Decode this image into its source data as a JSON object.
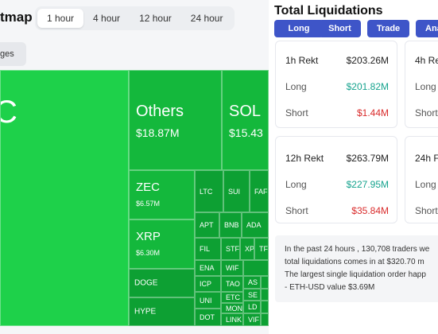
{
  "header": {
    "title": "tmap",
    "time_tabs": [
      "1 hour",
      "4 hour",
      "12 hour",
      "24 hour"
    ],
    "active_tab": "1 hour",
    "ranges_chip": "ges"
  },
  "heatmap": {
    "btc_partial_label": "C",
    "tiles": [
      {
        "name": "Others",
        "value": "$18.87M"
      },
      {
        "name": "SOL",
        "value": "$15.43"
      },
      {
        "name": "ZEC",
        "value": "$6.57M"
      },
      {
        "name": "XRP",
        "value": "$6.30M"
      },
      {
        "name": "DOGE"
      },
      {
        "name": "HYPE"
      },
      {
        "name": "LTC"
      },
      {
        "name": "SUI"
      },
      {
        "name": "FAF"
      },
      {
        "name": "APT"
      },
      {
        "name": "BNB"
      },
      {
        "name": "ADA"
      },
      {
        "name": "FIL"
      },
      {
        "name": "STF"
      },
      {
        "name": "XP"
      },
      {
        "name": "TF"
      },
      {
        "name": "ENA"
      },
      {
        "name": "WIF"
      },
      {
        "name": "ICP"
      },
      {
        "name": "TAO"
      },
      {
        "name": "AS"
      },
      {
        "name": "UNI"
      },
      {
        "name": "ETC"
      },
      {
        "name": "SE"
      },
      {
        "name": "MON"
      },
      {
        "name": "LD"
      },
      {
        "name": "DOT"
      },
      {
        "name": "LINK"
      },
      {
        "name": "VIF"
      }
    ],
    "colors": {
      "main": "#1ed14a",
      "mid": "#14b83c",
      "dark": "#0da033"
    }
  },
  "panel": {
    "title": "Total Liquidations",
    "buttons": [
      "Long",
      "Short",
      "Trade",
      "Ana"
    ],
    "cards": [
      {
        "head_label": "1h Rekt",
        "total": "$203.26M",
        "long_label": "Long",
        "long": "$201.82M",
        "short_label": "Short",
        "short": "$1.44M"
      },
      {
        "head_label": "4h Re",
        "long_label": "Long",
        "short_label": "Short"
      },
      {
        "head_label": "12h Rekt",
        "total": "$263.79M",
        "long_label": "Long",
        "long": "$227.95M",
        "short_label": "Short",
        "short": "$35.84M"
      },
      {
        "head_label": "24h F",
        "long_label": "Long",
        "short_label": "Short"
      }
    ],
    "summary_lines": [
      "In the past 24 hours , 130,708 traders we",
      "total liquidations comes in at $320.70 m",
      "The largest single liquidation order happ",
      "- ETH-USD value $3.69M"
    ]
  }
}
